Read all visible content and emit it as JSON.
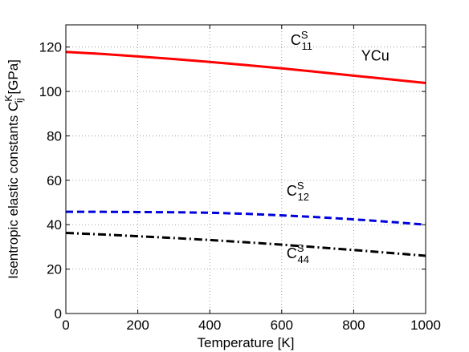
{
  "chart_data": {
    "type": "line",
    "title": "",
    "xlabel": "Temperature [K]",
    "ylabel": {
      "main": "Isentropic elastic constants C",
      "sub": "ij",
      "sup": "K",
      "unit": " [GPa]"
    },
    "xlim": [
      0,
      1000
    ],
    "ylim": [
      0,
      130
    ],
    "xticks": [
      0,
      200,
      400,
      600,
      800,
      1000
    ],
    "yticks": [
      0,
      20,
      40,
      60,
      80,
      100,
      120
    ],
    "grid": true,
    "series": [
      {
        "color": "#ff0000",
        "style": "solid",
        "x": [
          0,
          100,
          200,
          300,
          400,
          500,
          600,
          700,
          800,
          900,
          1000
        ],
        "y": [
          117.8,
          116.9,
          115.8,
          114.6,
          113.3,
          111.9,
          110.4,
          108.8,
          107.1,
          105.5,
          103.8
        ]
      },
      {
        "color": "#0000dd",
        "style": "dashed",
        "x": [
          0,
          100,
          200,
          300,
          400,
          500,
          600,
          700,
          800,
          900,
          1000
        ],
        "y": [
          45.8,
          45.8,
          45.7,
          45.6,
          45.4,
          44.9,
          44.2,
          43.4,
          42.4,
          41.3,
          40.0
        ]
      },
      {
        "color": "#000000",
        "style": "dashdot",
        "x": [
          0,
          100,
          200,
          300,
          400,
          500,
          600,
          700,
          800,
          900,
          1000
        ],
        "y": [
          36.3,
          35.6,
          34.8,
          34.0,
          33.1,
          32.1,
          31.0,
          29.8,
          28.6,
          27.3,
          26.0
        ]
      }
    ],
    "annotations": [
      {
        "name": "c11",
        "base": "C",
        "sup": "S",
        "sub": "11",
        "x": 655,
        "y": 121
      },
      {
        "name": "ycu",
        "text": "YCu",
        "x": 860,
        "y": 114
      },
      {
        "name": "c12",
        "base": "C",
        "sup": "S",
        "sub": "12",
        "x": 645,
        "y": 53
      },
      {
        "name": "c44",
        "base": "C",
        "sup": "S",
        "sub": "44",
        "x": 645,
        "y": 25
      }
    ]
  }
}
